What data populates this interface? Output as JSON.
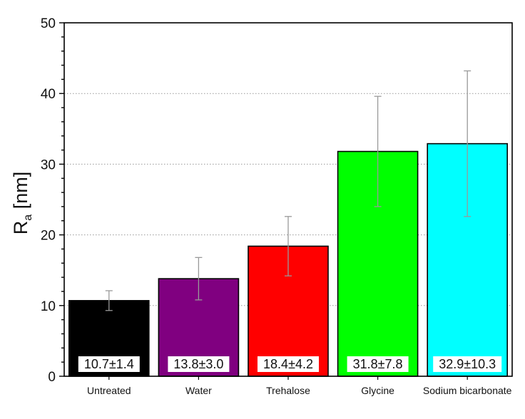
{
  "chart_data": {
    "type": "bar",
    "title": "",
    "xlabel": "",
    "ylabel": "R",
    "ylabel_subscript": "a",
    "ylabel_unit": " [nm]",
    "ylim": [
      0,
      50
    ],
    "yticks": [
      0,
      10,
      20,
      30,
      40,
      50
    ],
    "grid": "horizontal dotted",
    "legend": "none",
    "categories": [
      "Untreated",
      "Water",
      "Trehalose",
      "Glycine",
      "Sodium bicarbonate"
    ],
    "values": [
      10.7,
      13.8,
      18.4,
      31.8,
      32.9
    ],
    "errors": [
      1.4,
      3.0,
      4.2,
      7.8,
      10.3
    ],
    "data_labels": [
      "10.7±1.4",
      "13.8±3.0",
      "18.4±4.2",
      "31.8±7.8",
      "32.9±10.3"
    ],
    "colors": [
      "#000000",
      "#800080",
      "#ff0000",
      "#00ff00",
      "#00ffff"
    ],
    "error_bar_color": "#999999"
  }
}
